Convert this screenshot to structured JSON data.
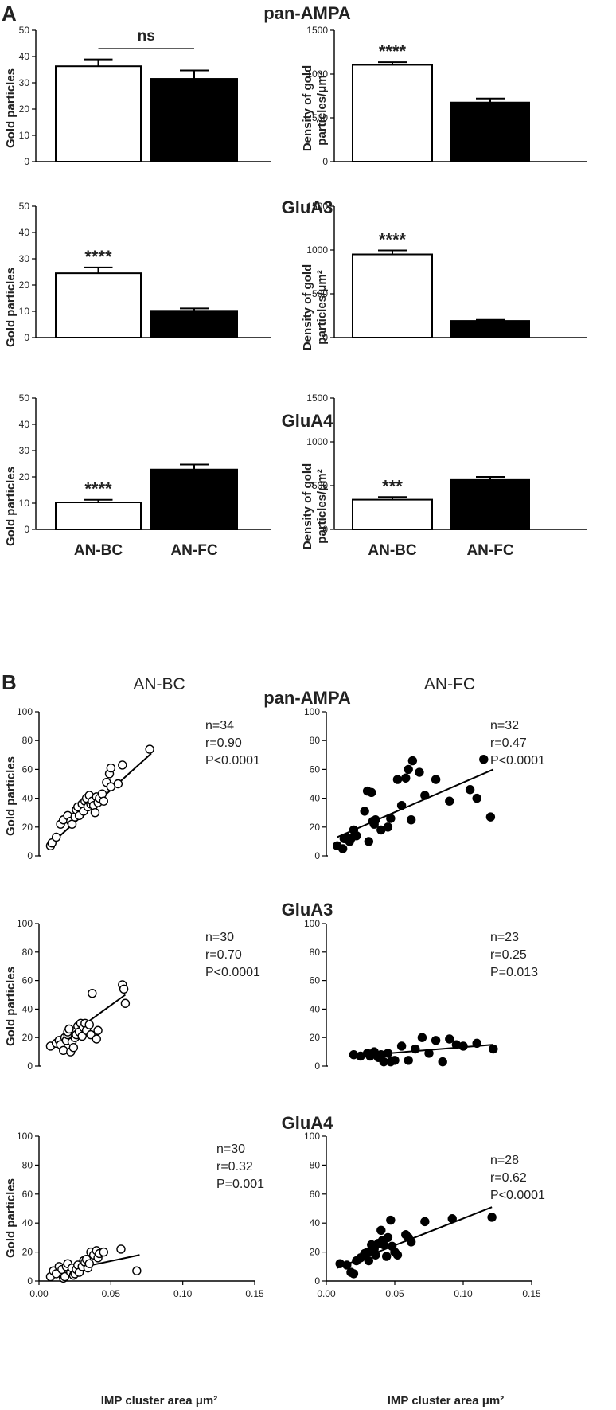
{
  "figure": {
    "panel_a_letter": "A",
    "panel_b_letter": "B",
    "categories": [
      "AN-BC",
      "AN-FC"
    ],
    "row_titles": [
      "pan-AMPA",
      "GluA3",
      "GluA4"
    ],
    "col_titles": [
      "AN-BC",
      "AN-FC"
    ],
    "count_ylabel": "Gold particles",
    "density_ylabel_line1": "Density of gold",
    "density_ylabel_line2": "particles/μm²",
    "scatter_ylabel": "Gold particles",
    "scatter_xlabel": "IMP cluster area μm²",
    "colors": {
      "open": "#ffffff",
      "filled": "#000000",
      "line": "#000000"
    }
  },
  "chart_data": [
    {
      "id": "a-panampa-count",
      "type": "bar",
      "title": "pan-AMPA",
      "categories": [
        "AN-BC",
        "AN-FC"
      ],
      "values": [
        36.3,
        31.5
      ],
      "errors": [
        2.6,
        3.2
      ],
      "ylabel": "Gold particles",
      "ylim": [
        0,
        50
      ],
      "yticks": [
        "0",
        "10",
        "20",
        "30",
        "40",
        "50"
      ],
      "significance": [
        "",
        ""
      ],
      "comparison": "ns"
    },
    {
      "id": "a-panampa-density",
      "type": "bar",
      "title": "pan-AMPA",
      "categories": [
        "AN-BC",
        "AN-FC"
      ],
      "values": [
        1105,
        675
      ],
      "errors": [
        30,
        45
      ],
      "ylabel": "Density of gold particles/μm²",
      "ylim": [
        0,
        1500
      ],
      "yticks": [
        "0",
        "500",
        "1000",
        "1500"
      ],
      "significance": [
        "****",
        ""
      ]
    },
    {
      "id": "a-glua3-count",
      "type": "bar",
      "title": "GluA3",
      "categories": [
        "AN-BC",
        "AN-FC"
      ],
      "values": [
        24.5,
        10.2
      ],
      "errors": [
        2.2,
        0.9
      ],
      "ylabel": "Gold particles",
      "ylim": [
        0,
        50
      ],
      "yticks": [
        "0",
        "10",
        "20",
        "30",
        "40",
        "50"
      ],
      "significance": [
        "****",
        ""
      ]
    },
    {
      "id": "a-glua3-density",
      "type": "bar",
      "title": "GluA3",
      "categories": [
        "AN-BC",
        "AN-FC"
      ],
      "values": [
        950,
        190
      ],
      "errors": [
        45,
        12
      ],
      "ylabel": "Density of gold particles/μm²",
      "ylim": [
        0,
        1500
      ],
      "yticks": [
        "0",
        "500",
        "1000",
        "1500"
      ],
      "significance": [
        "****",
        ""
      ]
    },
    {
      "id": "a-glua4-count",
      "type": "bar",
      "title": "GluA4",
      "categories": [
        "AN-BC",
        "AN-FC"
      ],
      "values": [
        10.3,
        22.8
      ],
      "errors": [
        1.0,
        1.9
      ],
      "ylabel": "Gold particles",
      "ylim": [
        0,
        50
      ],
      "yticks": [
        "0",
        "10",
        "20",
        "30",
        "40",
        "50"
      ],
      "significance": [
        "****",
        ""
      ]
    },
    {
      "id": "a-glua4-density",
      "type": "bar",
      "title": "GluA4",
      "categories": [
        "AN-BC",
        "AN-FC"
      ],
      "values": [
        340,
        565
      ],
      "errors": [
        30,
        35
      ],
      "ylabel": "Density of gold particles/μm²",
      "ylim": [
        0,
        1500
      ],
      "yticks": [
        "0",
        "500",
        "1000",
        "1500"
      ],
      "significance": [
        "***",
        ""
      ]
    },
    {
      "id": "b-panampa-bc",
      "type": "scatter",
      "title": "pan-AMPA",
      "group": "AN-BC",
      "marker": "open",
      "stats": [
        "n=34",
        "r=0.90",
        "P<0.0001"
      ],
      "xlim": [
        0,
        0.15
      ],
      "xticks": [
        "0.00",
        "0.05",
        "0.10",
        "0.15"
      ],
      "ylim": [
        0,
        100
      ],
      "yticks": [
        "0",
        "20",
        "40",
        "60",
        "80",
        "100"
      ],
      "fit": {
        "x": [
          0.008,
          0.078
        ],
        "y": [
          8,
          71
        ]
      },
      "x": [
        0.008,
        0.009,
        0.012,
        0.015,
        0.017,
        0.02,
        0.022,
        0.023,
        0.025,
        0.026,
        0.027,
        0.028,
        0.03,
        0.031,
        0.032,
        0.033,
        0.034,
        0.035,
        0.036,
        0.037,
        0.038,
        0.039,
        0.04,
        0.041,
        0.042,
        0.044,
        0.045,
        0.047,
        0.049,
        0.05,
        0.05,
        0.055,
        0.058,
        0.077
      ],
      "y": [
        7,
        9,
        13,
        22,
        25,
        28,
        24,
        22,
        27,
        32,
        34,
        28,
        36,
        31,
        38,
        40,
        34,
        42,
        36,
        38,
        35,
        30,
        41,
        37,
        40,
        43,
        38,
        51,
        57,
        61,
        48,
        50,
        63,
        74
      ]
    },
    {
      "id": "b-panampa-fc",
      "type": "scatter",
      "title": "pan-AMPA",
      "group": "AN-FC",
      "marker": "filled",
      "stats": [
        "n=32",
        "r=0.47",
        "P<0.0001"
      ],
      "xlim": [
        0,
        0.15
      ],
      "xticks": [
        "0.00",
        "0.05",
        "0.10",
        "0.15"
      ],
      "ylim": [
        0,
        100
      ],
      "yticks": [
        "0",
        "20",
        "40",
        "60",
        "80",
        "100"
      ],
      "fit": {
        "x": [
          0.008,
          0.122
        ],
        "y": [
          13,
          60
        ]
      },
      "x": [
        0.008,
        0.012,
        0.013,
        0.015,
        0.017,
        0.018,
        0.02,
        0.022,
        0.028,
        0.03,
        0.031,
        0.033,
        0.034,
        0.035,
        0.036,
        0.04,
        0.045,
        0.047,
        0.052,
        0.055,
        0.058,
        0.06,
        0.062,
        0.063,
        0.068,
        0.072,
        0.08,
        0.09,
        0.105,
        0.11,
        0.115,
        0.12
      ],
      "y": [
        7,
        5,
        12,
        13,
        10,
        12,
        18,
        14,
        31,
        45,
        10,
        44,
        24,
        22,
        25,
        18,
        20,
        26,
        53,
        35,
        54,
        60,
        25,
        66,
        58,
        42,
        53,
        38,
        46,
        40,
        67,
        27
      ]
    },
    {
      "id": "b-glua3-bc",
      "type": "scatter",
      "title": "GluA3",
      "group": "AN-BC",
      "marker": "open",
      "stats": [
        "n=30",
        "r=0.70",
        "P<0.0001"
      ],
      "xlim": [
        0,
        0.15
      ],
      "xticks": [
        "0.00",
        "0.05",
        "0.10",
        "0.15"
      ],
      "ylim": [
        0,
        100
      ],
      "yticks": [
        "0",
        "20",
        "40",
        "60",
        "80",
        "100"
      ],
      "fit": {
        "x": [
          0.008,
          0.06
        ],
        "y": [
          12,
          50
        ]
      },
      "x": [
        0.008,
        0.012,
        0.014,
        0.015,
        0.017,
        0.018,
        0.019,
        0.02,
        0.02,
        0.021,
        0.022,
        0.023,
        0.024,
        0.025,
        0.026,
        0.027,
        0.028,
        0.029,
        0.03,
        0.031,
        0.032,
        0.033,
        0.035,
        0.036,
        0.037,
        0.04,
        0.041,
        0.058,
        0.059,
        0.06
      ],
      "y": [
        14,
        16,
        18,
        15,
        11,
        20,
        18,
        22,
        24,
        26,
        10,
        17,
        13,
        20,
        22,
        28,
        24,
        30,
        21,
        27,
        30,
        25,
        29,
        22,
        51,
        19,
        25,
        57,
        54,
        44
      ]
    },
    {
      "id": "b-glua3-fc",
      "type": "scatter",
      "title": "GluA3",
      "group": "AN-FC",
      "marker": "filled",
      "stats": [
        "n=23",
        "r=0.25",
        "P=0.013"
      ],
      "xlim": [
        0,
        0.15
      ],
      "xticks": [
        "0.00",
        "0.05",
        "0.10",
        "0.15"
      ],
      "ylim": [
        0,
        100
      ],
      "yticks": [
        "0",
        "20",
        "40",
        "60",
        "80",
        "100"
      ],
      "fit": {
        "x": [
          0.02,
          0.122
        ],
        "y": [
          7,
          15
        ]
      },
      "x": [
        0.02,
        0.025,
        0.03,
        0.032,
        0.035,
        0.038,
        0.04,
        0.042,
        0.045,
        0.047,
        0.05,
        0.055,
        0.06,
        0.065,
        0.07,
        0.075,
        0.08,
        0.085,
        0.09,
        0.095,
        0.1,
        0.11,
        0.122
      ],
      "y": [
        8,
        7,
        9,
        7,
        10,
        6,
        8,
        3,
        9,
        3,
        4,
        14,
        4,
        12,
        20,
        9,
        18,
        3,
        19,
        15,
        14,
        16,
        12
      ]
    },
    {
      "id": "b-glua4-bc",
      "type": "scatter",
      "title": "GluA4",
      "group": "AN-BC",
      "marker": "open",
      "stats": [
        "n=30",
        "r=0.32",
        "P=0.001"
      ],
      "xlim": [
        0,
        0.15
      ],
      "xticks": [
        "0.00",
        "0.05",
        "0.10",
        "0.15"
      ],
      "ylim": [
        0,
        100
      ],
      "yticks": [
        "0",
        "20",
        "40",
        "60",
        "80",
        "100"
      ],
      "fit": {
        "x": [
          0.008,
          0.07
        ],
        "y": [
          5,
          18
        ]
      },
      "x": [
        0.008,
        0.01,
        0.012,
        0.014,
        0.016,
        0.017,
        0.018,
        0.019,
        0.02,
        0.022,
        0.023,
        0.024,
        0.025,
        0.026,
        0.027,
        0.028,
        0.03,
        0.031,
        0.032,
        0.033,
        0.034,
        0.035,
        0.036,
        0.038,
        0.04,
        0.041,
        0.042,
        0.045,
        0.057,
        0.068
      ],
      "y": [
        3,
        7,
        5,
        10,
        8,
        2,
        3,
        10,
        12,
        6,
        9,
        4,
        5,
        8,
        11,
        6,
        10,
        14,
        13,
        15,
        9,
        12,
        20,
        18,
        21,
        16,
        19,
        20,
        22,
        7
      ]
    },
    {
      "id": "b-glua4-fc",
      "type": "scatter",
      "title": "GluA4",
      "group": "AN-FC",
      "marker": "filled",
      "stats": [
        "n=28",
        "r=0.62",
        "P<0.0001"
      ],
      "xlim": [
        0,
        0.15
      ],
      "xticks": [
        "0.00",
        "0.05",
        "0.10",
        "0.15"
      ],
      "ylim": [
        0,
        100
      ],
      "yticks": [
        "0",
        "20",
        "40",
        "60",
        "80",
        "100"
      ],
      "fit": {
        "x": [
          0.008,
          0.121
        ],
        "y": [
          9,
          51
        ]
      },
      "x": [
        0.01,
        0.015,
        0.018,
        0.02,
        0.022,
        0.025,
        0.028,
        0.03,
        0.031,
        0.033,
        0.035,
        0.036,
        0.038,
        0.04,
        0.041,
        0.042,
        0.044,
        0.045,
        0.047,
        0.048,
        0.05,
        0.052,
        0.058,
        0.06,
        0.062,
        0.072,
        0.092,
        0.121
      ],
      "y": [
        12,
        11,
        6,
        5,
        14,
        16,
        19,
        20,
        14,
        25,
        22,
        18,
        26,
        35,
        28,
        25,
        17,
        30,
        42,
        24,
        20,
        18,
        32,
        30,
        27,
        41,
        43,
        44
      ]
    }
  ]
}
